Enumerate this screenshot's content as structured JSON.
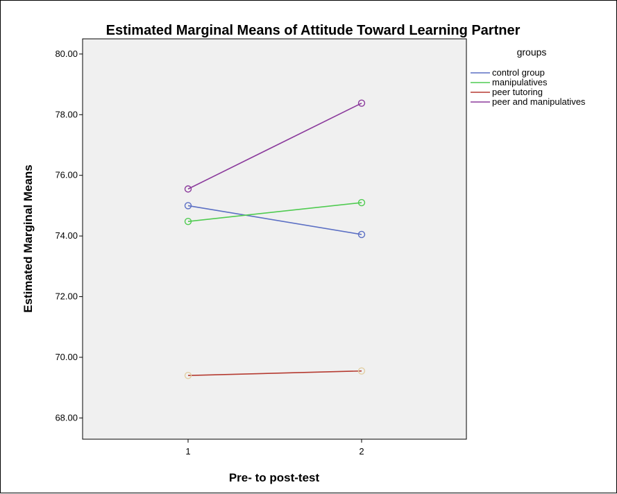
{
  "chart_data": {
    "type": "line",
    "title": "Estimated Marginal Means of Attitude Toward Learning Partner",
    "xlabel": "Pre- to post-test",
    "ylabel": "Estimated Marginal Means",
    "categories": [
      "1",
      "2"
    ],
    "ylim": [
      67.3,
      80.5
    ],
    "yticks": [
      "68.00",
      "70.00",
      "72.00",
      "74.00",
      "76.00",
      "78.00",
      "80.00"
    ],
    "grid": false,
    "legend": {
      "title": "groups",
      "position": "right"
    },
    "plot_background": "#f0f0f0",
    "series": [
      {
        "name": "control group",
        "values": [
          75.0,
          74.05
        ],
        "color": "#5b6fc4",
        "marker_color": "#5b6fc4"
      },
      {
        "name": "manipulatives",
        "values": [
          74.48,
          75.1
        ],
        "color": "#4fcb50",
        "marker_color": "#4fcb50"
      },
      {
        "name": "peer tutoring",
        "values": [
          69.4,
          69.55
        ],
        "color": "#b53a30",
        "marker_color": "#e2cfa4"
      },
      {
        "name": "peer and manipulatives",
        "values": [
          75.55,
          78.38
        ],
        "color": "#8b3a9c",
        "marker_color": "#8b3a9c"
      }
    ]
  }
}
